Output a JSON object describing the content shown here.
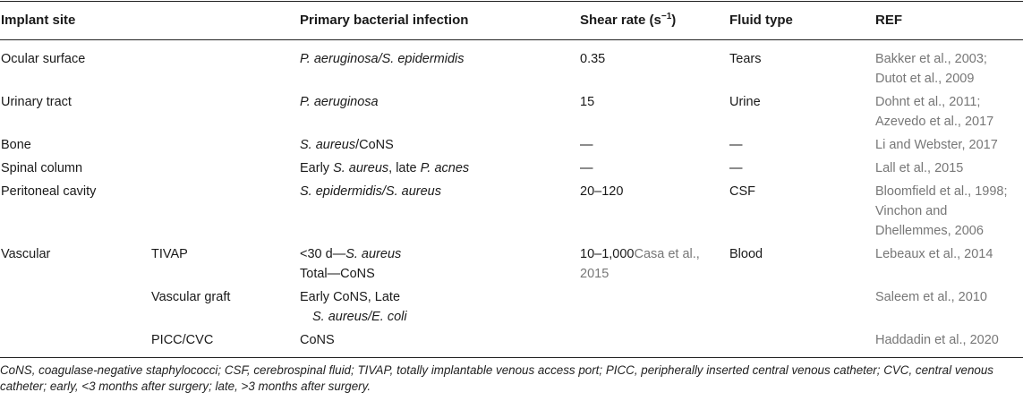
{
  "headers": {
    "implant_site": "Implant site",
    "infection": "Primary bacterial infection",
    "shear_rate": "Shear rate (s",
    "shear_rate_sup": "−1",
    "shear_rate_close": ")",
    "fluid_type": "Fluid type",
    "ref": "REF"
  },
  "rows": {
    "ocular": {
      "site": "Ocular surface",
      "infection": "P. aeruginosa/S. epidermidis",
      "shear": "0.35",
      "fluid": "Tears",
      "ref1": "Bakker et al., 2003;",
      "ref2": "Dutot et al., 2009"
    },
    "urinary": {
      "site": "Urinary tract",
      "infection": "P. aeruginosa",
      "shear": "15",
      "fluid": "Urine",
      "ref1": "Dohnt et al., 2011;",
      "ref2": "Azevedo et al., 2017"
    },
    "bone": {
      "site": "Bone",
      "infection_a": "S. aureus",
      "infection_b": "/CoNS",
      "shear": "—",
      "fluid": "—",
      "ref1": "Li and Webster, 2017"
    },
    "spinal": {
      "site": "Spinal column",
      "infection_a": "Early ",
      "infection_b": "S. aureus",
      "infection_c": ", late ",
      "infection_d": "P. acnes",
      "shear": "—",
      "fluid": "—",
      "ref1": "Lall et al., 2015"
    },
    "peritoneal": {
      "site": "Peritoneal cavity",
      "infection": "S. epidermidis/S. aureus",
      "shear": "20–120",
      "fluid": "CSF",
      "ref1": "Bloomfield et al., 1998;",
      "ref2": "Vinchon and",
      "ref3": "Dhellemmes, 2006"
    },
    "vascular": {
      "site": "Vascular",
      "tivap": {
        "sub": "TIVAP",
        "inf1_a": "<30 d—",
        "inf1_b": "S. aureus",
        "inf2": "Total—CoNS",
        "shear1": "10–1,000",
        "shear1_ref": "Casa et al.,",
        "shear2_ref": "2015",
        "fluid": "Blood",
        "ref1": "Lebeaux et al., 2014"
      },
      "graft": {
        "sub": "Vascular graft",
        "inf1": "Early CoNS, Late",
        "inf2": "S. aureus/E. coli",
        "ref1": "Saleem et al., 2010"
      },
      "picc": {
        "sub": "PICC/CVC",
        "inf1": "CoNS",
        "ref1": "Haddadin et al., 2020"
      }
    }
  },
  "footnote": "CoNS, coagulase-negative staphylococci; CSF, cerebrospinal fluid; TIVAP, totally implantable venous access port; PICC, peripherally inserted central venous catheter; CVC, central venous catheter; early, <3 months after surgery; late, >3 months after surgery."
}
